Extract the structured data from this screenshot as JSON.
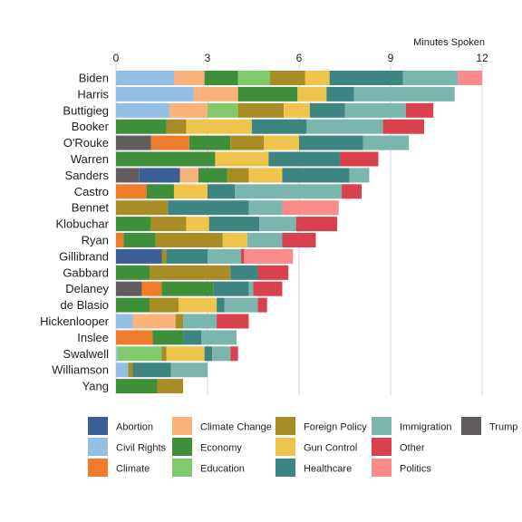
{
  "chart_data": {
    "type": "bar",
    "stacked": true,
    "orientation": "horizontal",
    "x_axis_title": "Minutes Spoken",
    "xlim": [
      0,
      12
    ],
    "x_ticks": [
      "0",
      "3",
      "6",
      "9",
      "12"
    ],
    "grid": true,
    "legend_position": "bottom",
    "topic_order": [
      "Trump",
      "Abortion",
      "Civil Rights",
      "Climate",
      "Climate Change",
      "Economy",
      "Education",
      "Foreign Policy",
      "Gun Control",
      "Healthcare",
      "Immigration",
      "Other",
      "Politics"
    ],
    "legend_items": [
      "Abortion",
      "Climate Change",
      "Foreign Policy",
      "Immigration",
      "Trump",
      "Civil Rights",
      "Economy",
      "Gun Control",
      "Other",
      "Climate",
      "Education",
      "Healthcare",
      "Politics"
    ],
    "colors": {
      "Abortion": "#3b5e96",
      "Civil Rights": "#93bfe5",
      "Climate": "#ee7c2b",
      "Climate Change": "#f9b27a",
      "Economy": "#3f8f3a",
      "Education": "#82c96b",
      "Foreign Policy": "#a88c26",
      "Gun Control": "#efc44c",
      "Healthcare": "#3c8580",
      "Immigration": "#7ab6ad",
      "Other": "#d9414e",
      "Politics": "#fa8b8b",
      "Trump": "#625c5e"
    },
    "categories": [
      "Biden",
      "Harris",
      "Buttigieg",
      "Booker",
      "O'Rouke",
      "Warren",
      "Sanders",
      "Castro",
      "Bennet",
      "Klobuchar",
      "Ryan",
      "Gillibrand",
      "Gabbard",
      "Delaney",
      "de Blasio",
      "Hickenlooper",
      "Inslee",
      "Swalwell",
      "Williamson",
      "Yang"
    ],
    "rows": [
      {
        "Politics": 0.8,
        "Immigration": 1.8,
        "Healthcare": 2.4,
        "Gun Control": 0.8,
        "Foreign Policy": 1.15,
        "Education": 1.05,
        "Economy": 1.1,
        "Climate Change": 1.0,
        "Civil Rights": 1.9
      },
      {
        "Immigration": 3.3,
        "Healthcare": 0.9,
        "Gun Control": 0.95,
        "Economy": 1.95,
        "Climate Change": 1.45,
        "Civil Rights": 2.55
      },
      {
        "Other": 0.9,
        "Immigration": 2.0,
        "Healthcare": 1.15,
        "Gun Control": 0.85,
        "Foreign Policy": 1.5,
        "Education": 1.0,
        "Climate Change": 1.25,
        "Civil Rights": 1.75
      },
      {
        "Other": 1.35,
        "Immigration": 2.5,
        "Healthcare": 1.8,
        "Gun Control": 2.15,
        "Foreign Policy": 0.65,
        "Economy": 1.65
      },
      {
        "Trump": 1.15,
        "Immigration": 1.5,
        "Healthcare": 2.1,
        "Gun Control": 1.15,
        "Foreign Policy": 1.1,
        "Economy": 1.35,
        "Climate": 1.25
      },
      {
        "Other": 1.25,
        "Healthcare": 2.35,
        "Gun Control": 1.75,
        "Economy": 3.25
      },
      {
        "Trump": 0.75,
        "Immigration": 0.65,
        "Healthcare": 2.2,
        "Gun Control": 1.1,
        "Foreign Policy": 0.7,
        "Economy": 0.95,
        "Climate Change": 0.6,
        "Abortion": 1.35
      },
      {
        "Other": 0.65,
        "Immigration": 3.5,
        "Healthcare": 0.9,
        "Gun Control": 1.1,
        "Economy": 0.9,
        "Climate": 1.0
      },
      {
        "Politics": 1.85,
        "Immigration": 1.1,
        "Healthcare": 2.65,
        "Foreign Policy": 1.7
      },
      {
        "Other": 1.35,
        "Immigration": 1.2,
        "Healthcare": 1.65,
        "Gun Control": 0.75,
        "Foreign Policy": 1.15,
        "Economy": 1.15
      },
      {
        "Other": 1.1,
        "Immigration": 1.15,
        "Gun Control": 0.8,
        "Foreign Policy": 2.2,
        "Economy": 1.05,
        "Climate": 0.25
      },
      {
        "Politics": 1.6,
        "Other": 0.1,
        "Immigration": 1.1,
        "Healthcare": 1.35,
        "Foreign Policy": 0.15,
        "Abortion": 1.5
      },
      {
        "Other": 1.0,
        "Healthcare": 0.9,
        "Foreign Policy": 2.65,
        "Economy": 1.1
      },
      {
        "Trump": 0.85,
        "Other": 0.95,
        "Immigration": 0.15,
        "Healthcare": 1.15,
        "Economy": 1.7,
        "Climate": 0.65
      },
      {
        "Other": 0.3,
        "Immigration": 1.1,
        "Healthcare": 0.25,
        "Gun Control": 1.25,
        "Foreign Policy": 0.95,
        "Economy": 1.1
      },
      {
        "Other": 1.05,
        "Immigration": 1.1,
        "Foreign Policy": 0.25,
        "Climate Change": 1.4,
        "Civil Rights": 0.55
      },
      {
        "Immigration": 1.15,
        "Healthcare": 0.6,
        "Economy": 1.0,
        "Climate": 1.2
      },
      {
        "Other": 0.25,
        "Immigration": 0.6,
        "Healthcare": 0.25,
        "Gun Control": 1.25,
        "Foreign Policy": 0.15,
        "Education": 1.45,
        "Civil Rights": 0.05
      },
      {
        "Immigration": 1.2,
        "Healthcare": 1.25,
        "Foreign Policy": 0.15,
        "Civil Rights": 0.4
      },
      {
        "Foreign Policy": 0.85,
        "Economy": 1.35
      }
    ]
  }
}
